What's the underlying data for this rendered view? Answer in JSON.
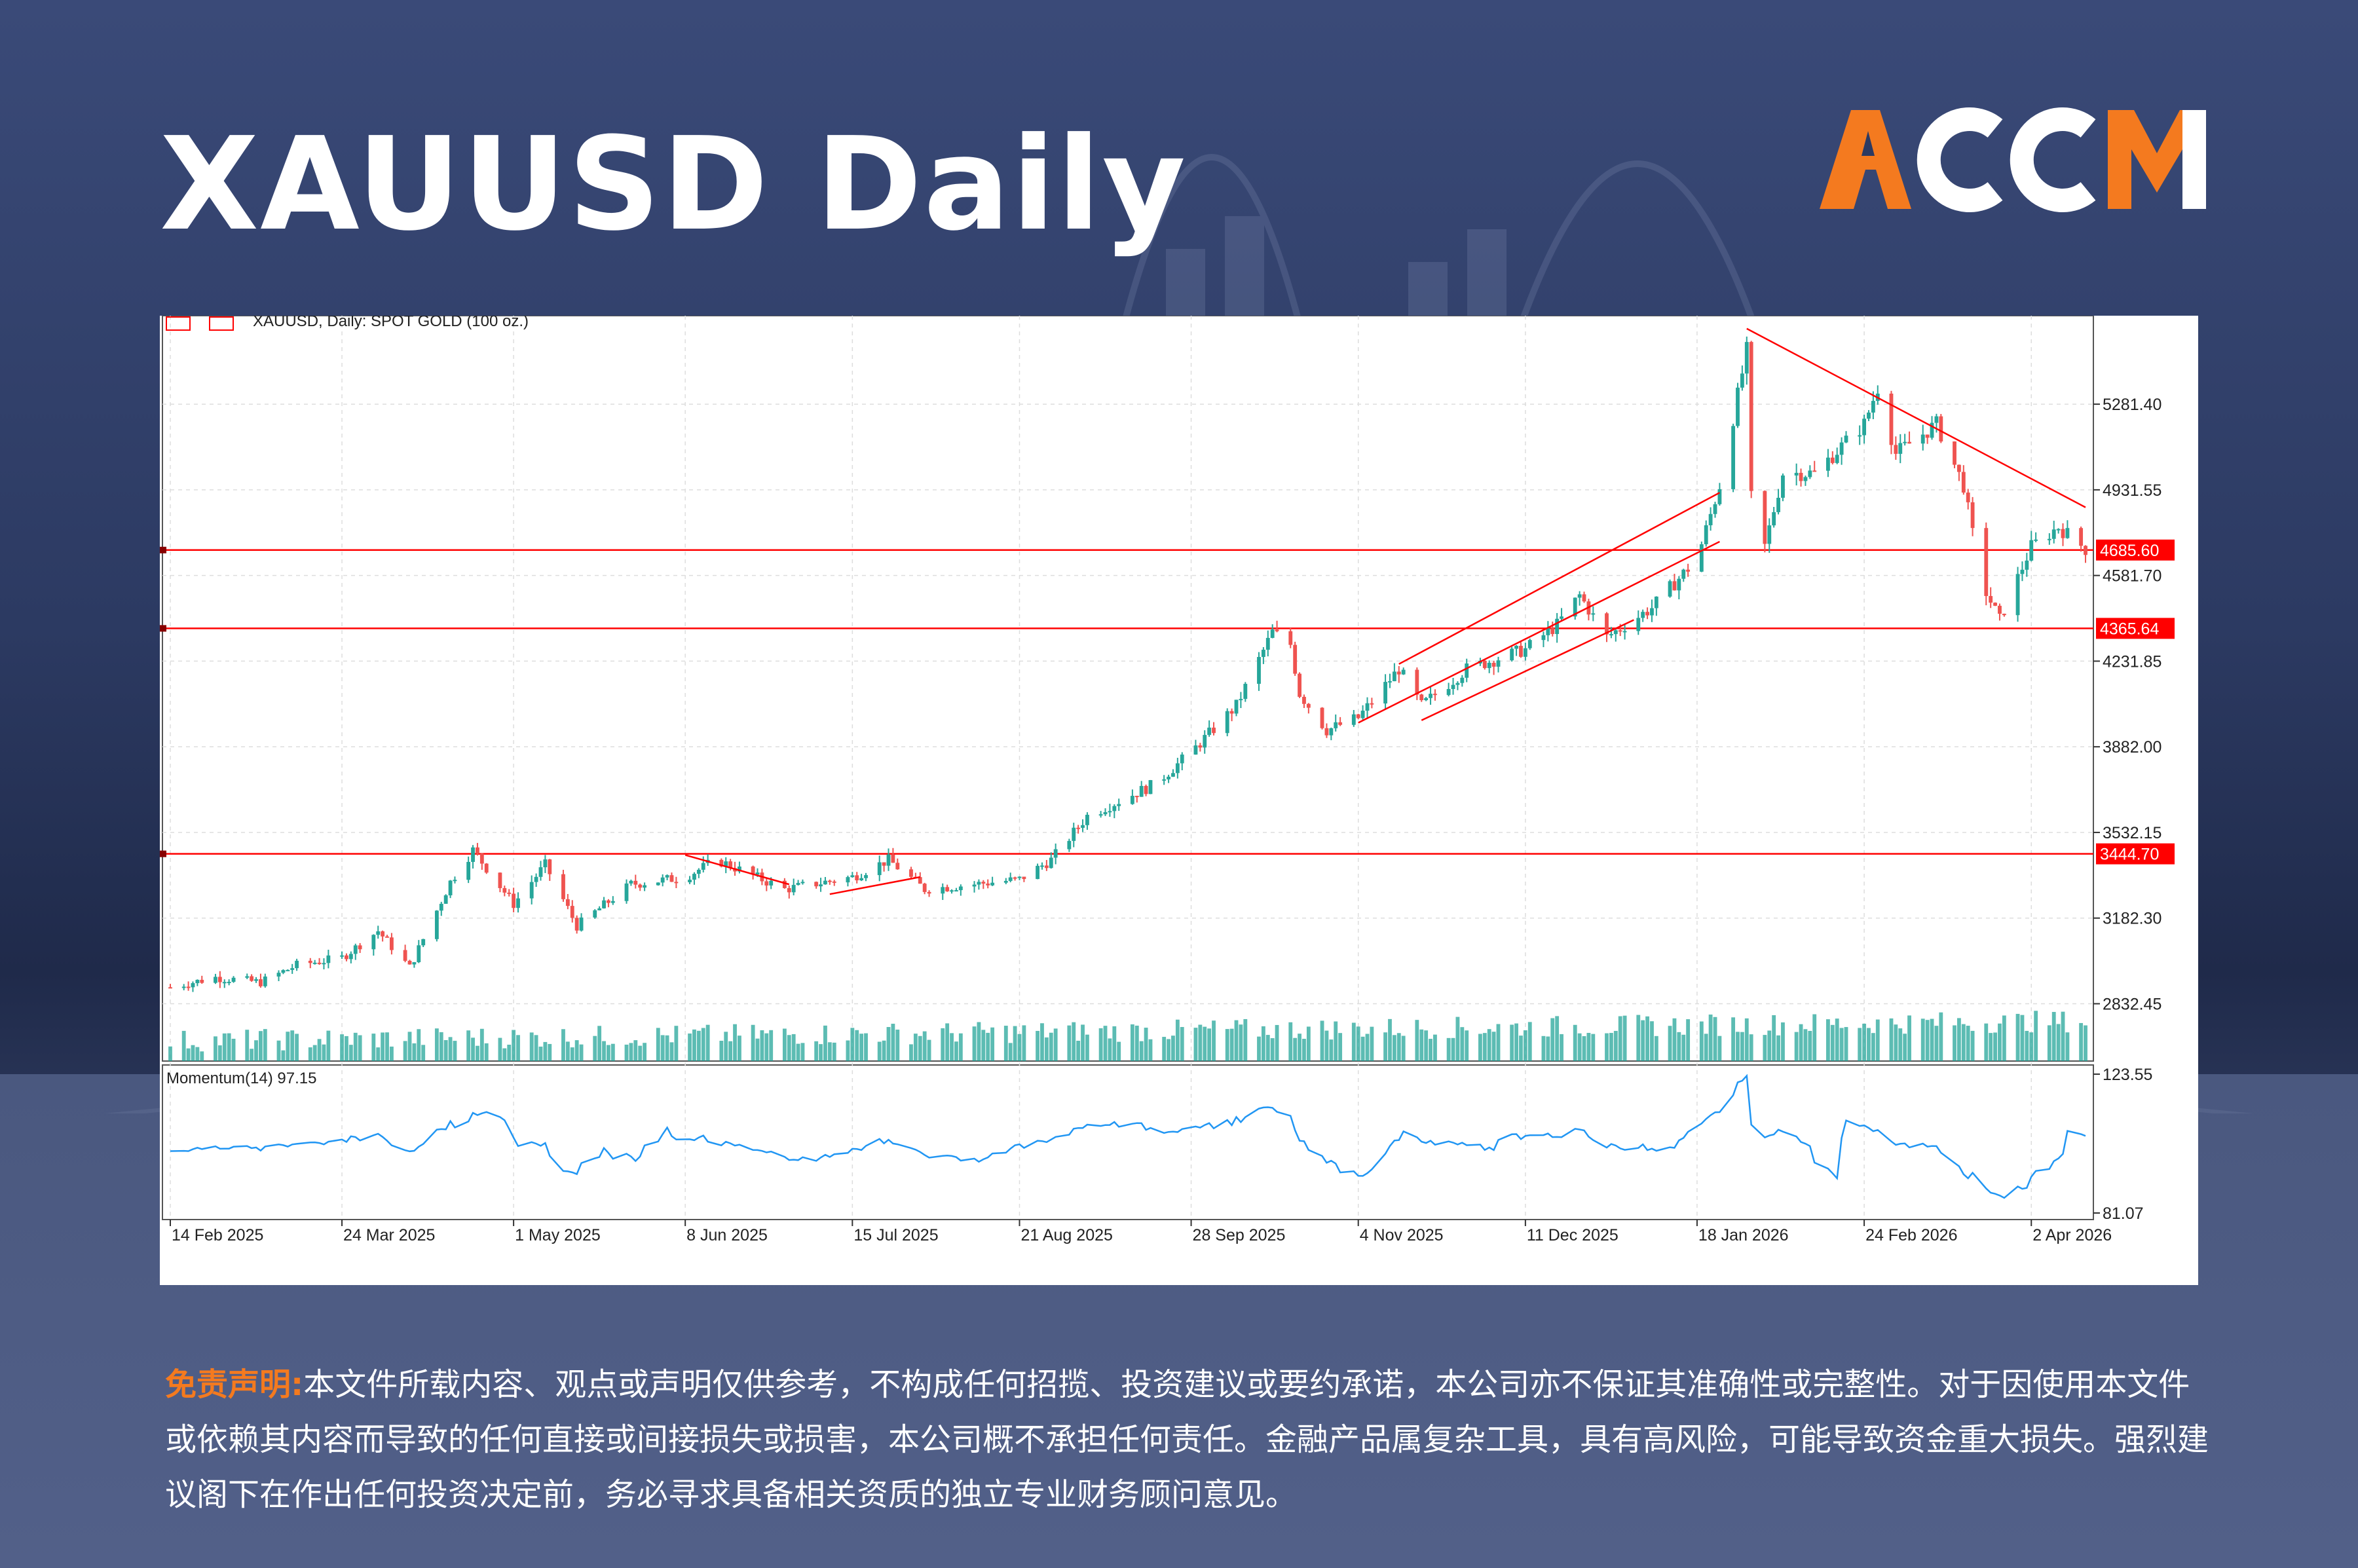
{
  "header": {
    "title": "XAUUSD Daily",
    "logo_text": "ACCM"
  },
  "colors": {
    "accent_orange": "#f47a1f",
    "bull": "#26a69a",
    "bear": "#ef5350",
    "level_line": "#ff0000",
    "momentum": "#2196f3",
    "volume": "#26a69a"
  },
  "chart_header": {
    "symbol_label": "XAUUSD, Daily:  SPOT GOLD (100 oz.)",
    "momentum_label": "Momentum(14) 97.15"
  },
  "chart_data": {
    "type": "candlestick",
    "title": "XAUUSD, Daily:  SPOT GOLD (100 oz.)",
    "x_tick_labels": [
      "14 Feb 2025",
      "24 Mar 2025",
      "1 May 2025",
      "8 Jun 2025",
      "15 Jul 2025",
      "21 Aug 2025",
      "28 Sep 2025",
      "4 Nov 2025",
      "11 Dec 2025",
      "18 Jan 2026",
      "24 Feb 2026",
      "2 Apr 2026"
    ],
    "y_tick_labels": [
      "5281.40",
      "4931.55",
      "4581.70",
      "4231.85",
      "3882.00",
      "3532.15",
      "3182.30",
      "2832.45"
    ],
    "ylim": [
      2700,
      5600
    ],
    "grid": true,
    "horizontal_levels": [
      {
        "label": "4685.60",
        "value": 4685.6
      },
      {
        "label": "4365.64",
        "value": 4365.64
      },
      {
        "label": "3444.70",
        "value": 3444.7
      }
    ],
    "price_anchors": [
      {
        "date": "14 Feb 2025",
        "close": 2900
      },
      {
        "date": "24 Feb 2025",
        "close": 2940
      },
      {
        "date": "6 Mar 2025",
        "close": 2920
      },
      {
        "date": "14 Mar 2025",
        "close": 2990
      },
      {
        "date": "24 Mar 2025",
        "close": 3020
      },
      {
        "date": "1 Apr 2025",
        "close": 3130
      },
      {
        "date": "8 Apr 2025",
        "close": 2980
      },
      {
        "date": "17 Apr 2025",
        "close": 3330
      },
      {
        "date": "22 Apr 2025",
        "close": 3460
      },
      {
        "date": "1 May 2025",
        "close": 3240
      },
      {
        "date": "8 May 2025",
        "close": 3400
      },
      {
        "date": "15 May 2025",
        "close": 3150
      },
      {
        "date": "27 May 2025",
        "close": 3320
      },
      {
        "date": "8 Jun 2025",
        "close": 3350
      },
      {
        "date": "15 Jun 2025",
        "close": 3420
      },
      {
        "date": "30 Jun 2025",
        "close": 3300
      },
      {
        "date": "15 Jul 2025",
        "close": 3350
      },
      {
        "date": "23 Jul 2025",
        "close": 3420
      },
      {
        "date": "31 Jul 2025",
        "close": 3300
      },
      {
        "date": "21 Aug 2025",
        "close": 3340
      },
      {
        "date": "28 Aug 2025",
        "close": 3420
      },
      {
        "date": "5 Sep 2025",
        "close": 3600
      },
      {
        "date": "20 Sep 2025",
        "close": 3730
      },
      {
        "date": "28 Sep 2025",
        "close": 3860
      },
      {
        "date": "8 Oct 2025",
        "close": 4050
      },
      {
        "date": "16 Oct 2025",
        "close": 4350
      },
      {
        "date": "20 Oct 2025",
        "close": 4300
      },
      {
        "date": "22 Oct 2025",
        "close": 4100
      },
      {
        "date": "28 Oct 2025",
        "close": 3950
      },
      {
        "date": "4 Nov 2025",
        "close": 4000
      },
      {
        "date": "13 Nov 2025",
        "close": 4200
      },
      {
        "date": "18 Nov 2025",
        "close": 4050
      },
      {
        "date": "28 Nov 2025",
        "close": 4200
      },
      {
        "date": "11 Dec 2025",
        "close": 4280
      },
      {
        "date": "18 Dec 2025",
        "close": 4380
      },
      {
        "date": "23 Dec 2025",
        "close": 4500
      },
      {
        "date": "29 Dec 2025",
        "close": 4330
      },
      {
        "date": "8 Jan 2026",
        "close": 4450
      },
      {
        "date": "18 Jan 2026",
        "close": 4650
      },
      {
        "date": "23 Jan 2026",
        "close": 4950
      },
      {
        "date": "29 Jan 2026",
        "close": 5500
      },
      {
        "date": "30 Jan 2026",
        "close": 4900
      },
      {
        "date": "2 Feb 2026",
        "close": 4700
      },
      {
        "date": "6 Feb 2026",
        "close": 5000
      },
      {
        "date": "13 Feb 2026",
        "close": 5000
      },
      {
        "date": "24 Feb 2026",
        "close": 5200
      },
      {
        "date": "27 Feb 2026",
        "close": 5350
      },
      {
        "date": "3 Mar 2026",
        "close": 5080
      },
      {
        "date": "12 Mar 2026",
        "close": 5200
      },
      {
        "date": "18 Mar 2026",
        "close": 4950
      },
      {
        "date": "22 Mar 2026",
        "close": 4550
      },
      {
        "date": "26 Mar 2026",
        "close": 4400
      },
      {
        "date": "2 Apr 2026",
        "close": 4700
      },
      {
        "date": "8 Apr 2026",
        "close": 4780
      },
      {
        "date": "14 Apr 2026",
        "close": 4690
      }
    ],
    "momentum": {
      "name": "Momentum(14)",
      "last_value": 97.15,
      "y_tick_labels": [
        "123.55",
        "81.07"
      ],
      "ylim": [
        81.07,
        123.55
      ]
    }
  },
  "disclaimer": {
    "label": "免责声明:",
    "text": "本文件所载内容、观点或声明仅供参考，不构成任何招揽、投资建议或要约承诺，本公司亦不保证其准确性或完整性。对于因使用本文件或依赖其内容而导致的任何直接或间接损失或损害，本公司概不承担任何责任。金融产品属复杂工具，具有高风险，可能导致资金重大损失。强烈建议阁下在作出任何投资决定前，务必寻求具备相关资质的独立专业财务顾问意见。"
  }
}
